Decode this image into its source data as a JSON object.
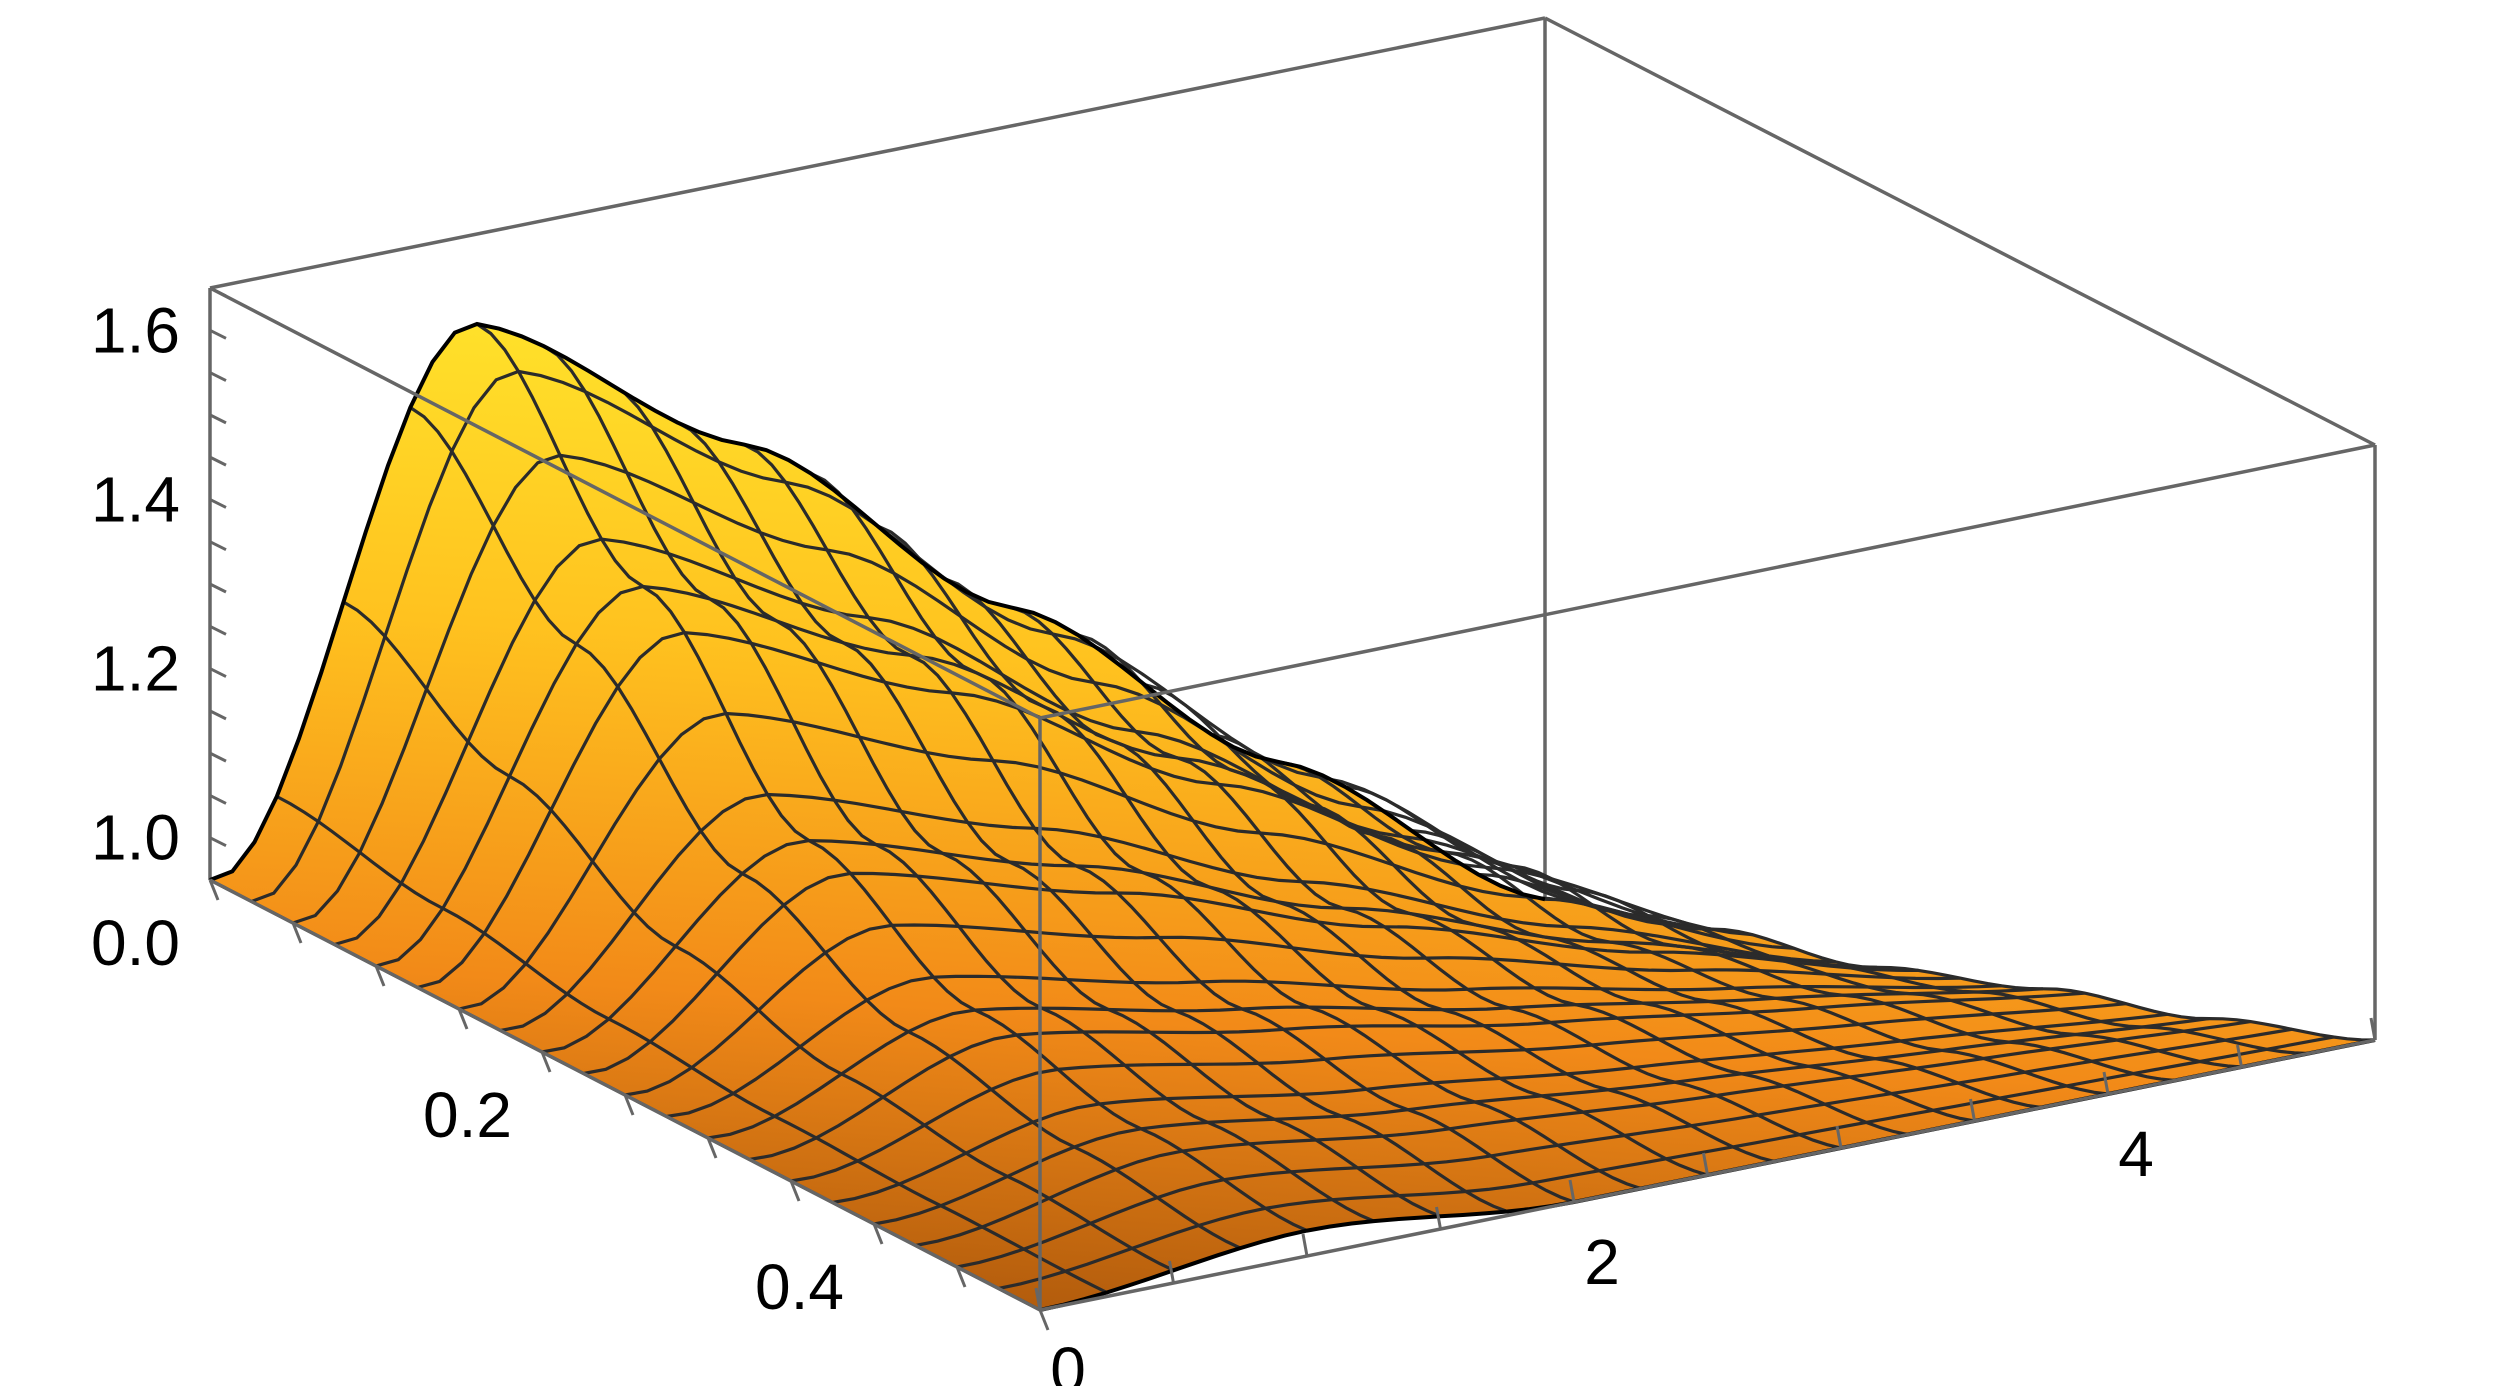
{
  "chart_data": {
    "type": "surface3d",
    "title": "",
    "x_axis": {
      "label": "",
      "range": [
        0,
        0.5
      ],
      "ticks": [
        "0.0",
        "0.2",
        "0.4"
      ],
      "tick_values": [
        0,
        0.2,
        0.4
      ]
    },
    "y_axis": {
      "label": "",
      "range": [
        0,
        5
      ],
      "ticks": [
        "0",
        "2",
        "4"
      ],
      "tick_values": [
        0,
        2,
        4
      ]
    },
    "z_axis": {
      "label": "",
      "range": [
        0.95,
        1.65
      ],
      "ticks": [
        "1.0",
        "1.2",
        "1.4",
        "1.6"
      ],
      "tick_values": [
        1.0,
        1.2,
        1.4,
        1.6
      ]
    },
    "surface_samples": {
      "x": [
        0,
        0.1,
        0.2,
        0.3,
        0.4,
        0.5
      ],
      "y": [
        0,
        1,
        2,
        3,
        4,
        5
      ],
      "z": [
        [
          0.95,
          1.65,
          1.55,
          1.4,
          1.26,
          1.14
        ],
        [
          0.95,
          1.42,
          1.36,
          1.26,
          1.17,
          1.1
        ],
        [
          0.95,
          1.2,
          1.17,
          1.12,
          1.08,
          1.05
        ],
        [
          0.95,
          1.08,
          1.06,
          1.04,
          1.03,
          1.02
        ],
        [
          0.95,
          1.02,
          1.0,
          0.99,
          0.985,
          0.98
        ],
        [
          0.95,
          0.98,
          0.95,
          0.95,
          0.95,
          0.95
        ]
      ]
    },
    "mesh_lines": 21,
    "colors": {
      "low": "#a6530a",
      "mid": "#f7931e",
      "high": "#ffe12a",
      "box": "#666666",
      "mesh": "#2b2b2b"
    }
  }
}
